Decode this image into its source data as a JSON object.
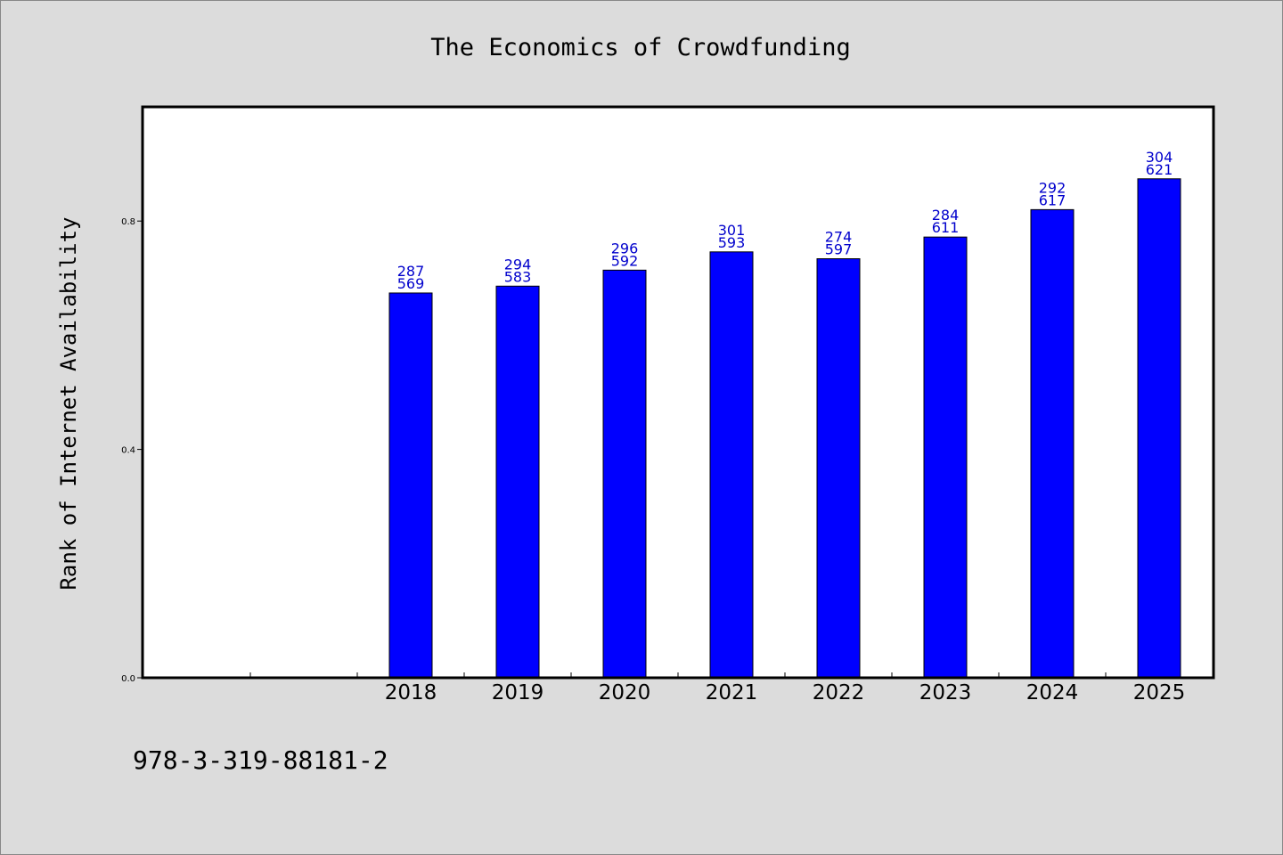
{
  "chart_data": {
    "type": "bar",
    "title": "The Economics of Crowdfunding",
    "xlabel": "",
    "ylabel": "Rank of Internet Availability",
    "categories": [
      "2018",
      "2019",
      "2020",
      "2021",
      "2022",
      "2023",
      "2024",
      "2025"
    ],
    "values": [
      0.674,
      0.686,
      0.714,
      0.746,
      0.734,
      0.772,
      0.82,
      0.874
    ],
    "label_top": [
      "287",
      "294",
      "296",
      "301",
      "274",
      "284",
      "292",
      "304"
    ],
    "label_bottom": [
      "569",
      "583",
      "592",
      "593",
      "597",
      "611",
      "617",
      "621"
    ],
    "ylim": [
      0,
      1.0
    ],
    "yticks": [
      "0.0",
      "0.4",
      "0.8"
    ],
    "grid": false,
    "bar_color": "#0000ff",
    "label_color": "#0000cc"
  },
  "footer": {
    "text": "978-3-319-88181-2"
  }
}
